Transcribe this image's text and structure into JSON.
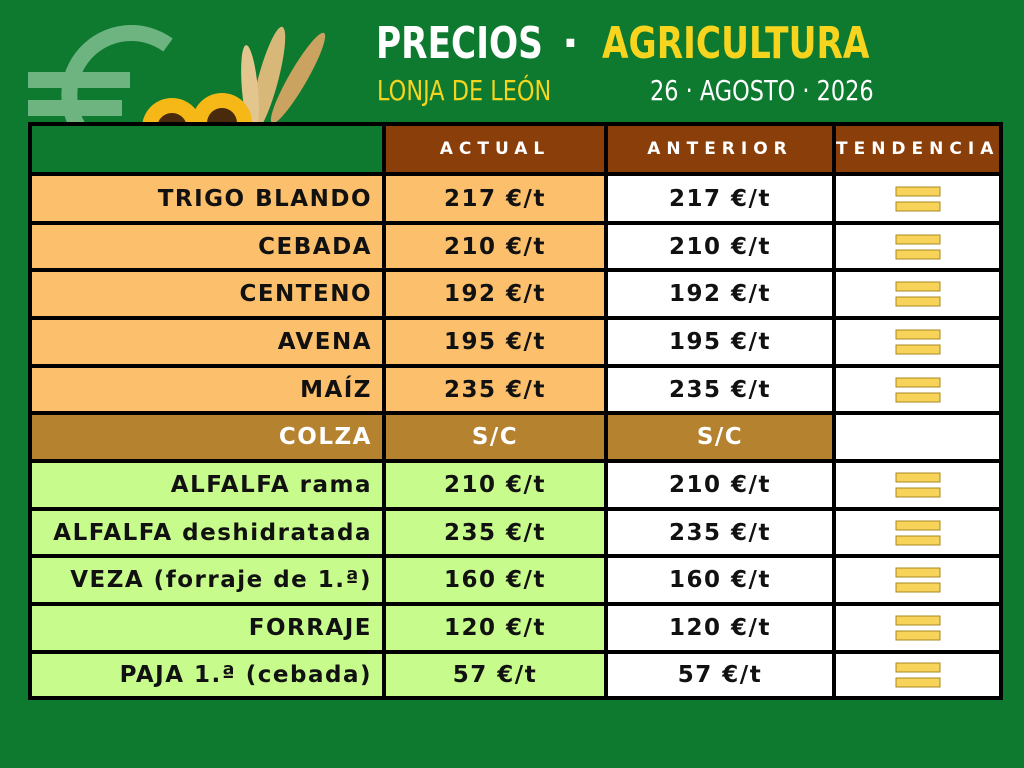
{
  "header": {
    "title": "PRECIOS",
    "separator": "·",
    "subtitle": "AGRICULTURA",
    "source": "LONJA DE LEÓN",
    "date": "26 · AGOSTO · 2026"
  },
  "table": {
    "columns": [
      "ACTUAL",
      "ANTERIOR",
      "TENDENCIA"
    ],
    "rows": [
      {
        "label": "TRIGO BLANDO",
        "actual": "217 €/t",
        "anterior": "217 €/t",
        "trend": "equal",
        "group": "cereal"
      },
      {
        "label": "CEBADA",
        "actual": "210 €/t",
        "anterior": "210 €/t",
        "trend": "equal",
        "group": "cereal"
      },
      {
        "label": "CENTENO",
        "actual": "192 €/t",
        "anterior": "192 €/t",
        "trend": "equal",
        "group": "cereal"
      },
      {
        "label": "AVENA",
        "actual": "195 €/t",
        "anterior": "195 €/t",
        "trend": "equal",
        "group": "cereal"
      },
      {
        "label": "MAÍZ",
        "actual": "235 €/t",
        "anterior": "235 €/t",
        "trend": "equal",
        "group": "cereal"
      },
      {
        "label": "COLZA",
        "actual": "S/C",
        "anterior": "S/C",
        "trend": null,
        "group": "oleaginosa"
      },
      {
        "label": "ALFALFA rama",
        "actual": "210 €/t",
        "anterior": "210 €/t",
        "trend": "equal",
        "group": "forraje"
      },
      {
        "label": "ALFALFA deshidratada",
        "actual": "235 €/t",
        "anterior": "235 €/t",
        "trend": "equal",
        "group": "forraje"
      },
      {
        "label": "VEZA (forraje de 1.ª)",
        "actual": "160 €/t",
        "anterior": "160 €/t",
        "trend": "equal",
        "group": "forraje"
      },
      {
        "label": "FORRAJE",
        "actual": "120 €/t",
        "anterior": "120 €/t",
        "trend": "equal",
        "group": "forraje"
      },
      {
        "label": "PAJA 1.ª (cebada)",
        "actual": "57 €/t",
        "anterior": "57 €/t",
        "trend": "equal",
        "group": "forraje"
      }
    ]
  }
}
